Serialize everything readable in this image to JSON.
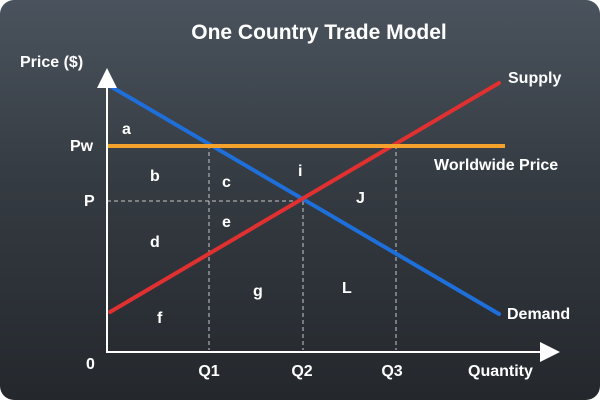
{
  "title": "One Country Trade Model",
  "axes": {
    "y_label": "Price ($)",
    "x_label": "Quantity",
    "origin_label": "0"
  },
  "price_ticks": {
    "world": "Pw",
    "domestic": "P"
  },
  "quantity_ticks": {
    "q1": "Q1",
    "q2": "Q2",
    "q3": "Q3"
  },
  "curves": {
    "supply": {
      "label": "Supply",
      "color": "#e03030"
    },
    "demand": {
      "label": "Demand",
      "color": "#1e6fd9"
    },
    "world_price": {
      "label": "Worldwide Price",
      "color": "#f4a22c"
    }
  },
  "regions": {
    "a": "a",
    "b": "b",
    "c": "c",
    "d": "d",
    "e": "e",
    "f": "f",
    "g": "g",
    "i": "i",
    "j": "J",
    "l": "L"
  },
  "colors": {
    "axis": "#ffffff",
    "guide": "#c8c8c8"
  }
}
